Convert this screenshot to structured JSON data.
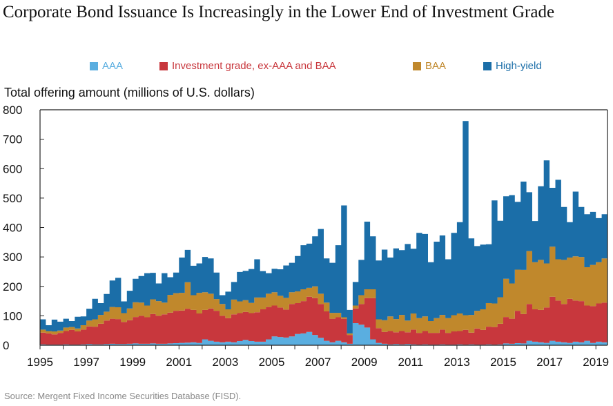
{
  "title": "Corporate Bond Issuance Is Increasingly in the Lower End of Investment Grade",
  "source": "Source: Mergent Fixed Income Securities Database (FISD).",
  "chart_data": {
    "type": "area",
    "stacked": true,
    "title": "Corporate Bond Issuance Is Increasingly in the Lower End of Investment Grade",
    "ylabel": "Total offering amount (millions of U.S. dollars)",
    "xlabel": "",
    "xlim": [
      1995,
      2019.5
    ],
    "ylim": [
      0,
      800
    ],
    "yticks": [
      0,
      100,
      200,
      300,
      400,
      500,
      600,
      700,
      800
    ],
    "xticks": [
      1995,
      1997,
      1999,
      2001,
      2003,
      2005,
      2007,
      2009,
      2011,
      2013,
      2015,
      2017,
      2019
    ],
    "grid": false,
    "legend_position": "top",
    "x": [
      1995.0,
      1995.25,
      1995.5,
      1995.75,
      1996.0,
      1996.25,
      1996.5,
      1996.75,
      1997.0,
      1997.25,
      1997.5,
      1997.75,
      1998.0,
      1998.25,
      1998.5,
      1998.75,
      1999.0,
      1999.25,
      1999.5,
      1999.75,
      2000.0,
      2000.25,
      2000.5,
      2000.75,
      2001.0,
      2001.25,
      2001.5,
      2001.75,
      2002.0,
      2002.25,
      2002.5,
      2002.75,
      2003.0,
      2003.25,
      2003.5,
      2003.75,
      2004.0,
      2004.25,
      2004.5,
      2004.75,
      2005.0,
      2005.25,
      2005.5,
      2005.75,
      2006.0,
      2006.25,
      2006.5,
      2006.75,
      2007.0,
      2007.25,
      2007.5,
      2007.75,
      2008.0,
      2008.25,
      2008.5,
      2008.75,
      2009.0,
      2009.25,
      2009.5,
      2009.75,
      2010.0,
      2010.25,
      2010.5,
      2010.75,
      2011.0,
      2011.25,
      2011.5,
      2011.75,
      2012.0,
      2012.25,
      2012.5,
      2012.75,
      2013.0,
      2013.25,
      2013.5,
      2013.75,
      2014.0,
      2014.25,
      2014.5,
      2014.75,
      2015.0,
      2015.25,
      2015.5,
      2015.75,
      2016.0,
      2016.25,
      2016.5,
      2016.75,
      2017.0,
      2017.25,
      2017.5,
      2017.75,
      2018.0,
      2018.25,
      2018.5,
      2018.75,
      2019.0,
      2019.25
    ],
    "series": [
      {
        "name": "AAA",
        "color": "#5aaee0",
        "values": [
          3,
          2,
          2,
          2,
          3,
          2,
          2,
          3,
          4,
          3,
          3,
          4,
          5,
          4,
          4,
          5,
          6,
          5,
          5,
          6,
          5,
          5,
          6,
          7,
          8,
          9,
          10,
          8,
          20,
          15,
          12,
          10,
          12,
          10,
          14,
          18,
          14,
          12,
          12,
          20,
          30,
          28,
          26,
          30,
          38,
          40,
          45,
          35,
          25,
          15,
          10,
          15,
          10,
          5,
          75,
          70,
          60,
          20,
          8,
          5,
          3,
          4,
          3,
          4,
          3,
          2,
          3,
          2,
          2,
          3,
          2,
          2,
          3,
          2,
          3,
          2,
          2,
          3,
          2,
          3,
          6,
          5,
          7,
          6,
          15,
          12,
          10,
          8,
          15,
          12,
          10,
          8,
          12,
          10,
          15,
          8,
          12,
          10
        ]
      },
      {
        "name": "Investment grade, ex-AAA and BAA",
        "color": "#c8373d",
        "values": [
          40,
          38,
          35,
          40,
          45,
          50,
          45,
          50,
          60,
          60,
          70,
          80,
          85,
          85,
          75,
          80,
          90,
          95,
          90,
          100,
          95,
          100,
          105,
          110,
          110,
          115,
          110,
          100,
          100,
          110,
          105,
          90,
          80,
          95,
          95,
          95,
          95,
          100,
          110,
          110,
          105,
          100,
          95,
          110,
          105,
          110,
          120,
          125,
          115,
          100,
          80,
          80,
          80,
          30,
          50,
          70,
          100,
          140,
          50,
          40,
          45,
          40,
          45,
          40,
          50,
          40,
          45,
          40,
          40,
          50,
          40,
          45,
          45,
          50,
          40,
          55,
          50,
          60,
          60,
          70,
          90,
          85,
          110,
          100,
          125,
          110,
          110,
          120,
          150,
          140,
          130,
          150,
          140,
          140,
          120,
          125,
          130,
          135
        ]
      },
      {
        "name": "BAA",
        "color": "#c0882c",
        "values": [
          10,
          8,
          10,
          8,
          12,
          10,
          10,
          15,
          20,
          25,
          30,
          30,
          40,
          40,
          30,
          40,
          50,
          45,
          40,
          50,
          50,
          40,
          60,
          60,
          60,
          90,
          50,
          70,
          60,
          50,
          40,
          40,
          30,
          50,
          40,
          40,
          35,
          50,
          40,
          45,
          45,
          40,
          40,
          40,
          40,
          40,
          30,
          40,
          35,
          30,
          20,
          15,
          5,
          5,
          10,
          30,
          30,
          30,
          30,
          40,
          50,
          45,
          55,
          40,
          55,
          50,
          50,
          40,
          50,
          50,
          50,
          55,
          60,
          50,
          60,
          60,
          70,
          80,
          80,
          90,
          130,
          120,
          140,
          150,
          180,
          160,
          170,
          150,
          170,
          140,
          150,
          140,
          150,
          150,
          130,
          140,
          140,
          150
        ]
      },
      {
        "name": "High-yield",
        "color": "#1b6ea8",
        "values": [
          35,
          20,
          40,
          30,
          30,
          20,
          40,
          30,
          40,
          70,
          40,
          60,
          90,
          100,
          40,
          60,
          80,
          90,
          110,
          90,
          60,
          100,
          60,
          70,
          120,
          110,
          100,
          100,
          120,
          120,
          90,
          30,
          60,
          60,
          100,
          100,
          115,
          130,
          90,
          70,
          80,
          90,
          110,
          100,
          120,
          150,
          150,
          170,
          220,
          150,
          170,
          230,
          380,
          80,
          80,
          120,
          230,
          180,
          200,
          240,
          200,
          240,
          220,
          260,
          220,
          290,
          280,
          200,
          260,
          270,
          200,
          280,
          310,
          660,
          260,
          220,
          220,
          200,
          350,
          260,
          280,
          300,
          230,
          300,
          200,
          140,
          250,
          350,
          200,
          270,
          180,
          120,
          220,
          170,
          180,
          180,
          150,
          150
        ]
      }
    ]
  }
}
